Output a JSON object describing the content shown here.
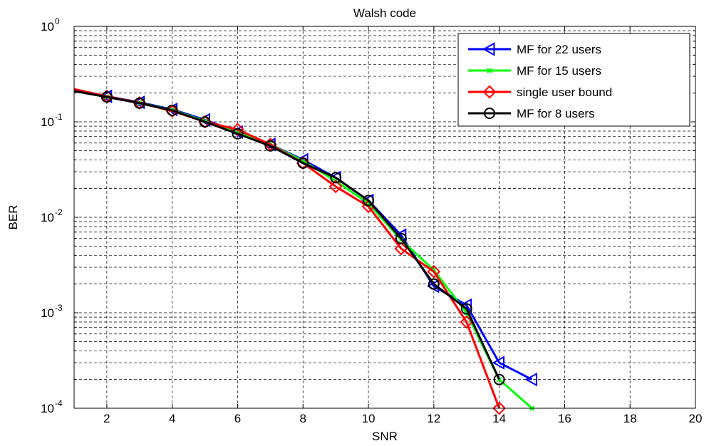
{
  "chart_data": {
    "type": "line",
    "title": "Walsh code",
    "xlabel": "SNR",
    "ylabel": "BER",
    "xlim": [
      1,
      20
    ],
    "ylim": [
      0.0001,
      1
    ],
    "yscale": "log",
    "grid": true,
    "legend_position": "top-right",
    "x_ticks": [
      2,
      4,
      6,
      8,
      10,
      12,
      14,
      16,
      18,
      20
    ],
    "y_ticks": [
      {
        "value": 1,
        "base": "10",
        "exp": "0"
      },
      {
        "value": 0.1,
        "base": "10",
        "exp": "-1"
      },
      {
        "value": 0.01,
        "base": "10",
        "exp": "-2"
      },
      {
        "value": 0.001,
        "base": "10",
        "exp": "-3"
      },
      {
        "value": 0.0001,
        "base": "10",
        "exp": "-4"
      }
    ],
    "series": [
      {
        "name": "MF for 22 users",
        "color": "#0000ff",
        "marker": "triangle-left",
        "x": [
          1,
          2,
          3,
          4,
          5,
          6,
          7,
          8,
          9,
          10,
          11,
          12,
          13,
          14,
          15
        ],
        "y": [
          0.21,
          0.185,
          0.16,
          0.135,
          0.105,
          0.078,
          0.058,
          0.04,
          0.026,
          0.015,
          0.0065,
          0.0019,
          0.0012,
          0.0003,
          0.0002
        ]
      },
      {
        "name": "MF for 15 users",
        "color": "#00ff00",
        "marker": "x",
        "x": [
          1,
          2,
          3,
          4,
          5,
          6,
          7,
          8,
          9,
          10,
          11,
          12,
          13,
          14,
          15
        ],
        "y": [
          0.21,
          0.183,
          0.158,
          0.133,
          0.102,
          0.077,
          0.058,
          0.039,
          0.024,
          0.014,
          0.0058,
          0.0028,
          0.001,
          0.0002,
          0.0001
        ]
      },
      {
        "name": "single user bound",
        "color": "#ff0000",
        "marker": "diamond",
        "x": [
          1,
          2,
          3,
          4,
          5,
          6,
          7,
          8,
          9,
          10,
          11,
          12,
          13,
          14
        ],
        "y": [
          0.22,
          0.185,
          0.158,
          0.13,
          0.1,
          0.083,
          0.058,
          0.037,
          0.021,
          0.013,
          0.0047,
          0.0027,
          0.0008,
          0.0001
        ]
      },
      {
        "name": "MF for 8 users",
        "color": "#000000",
        "marker": "circle",
        "x": [
          1,
          2,
          3,
          4,
          5,
          6,
          7,
          8,
          9,
          10,
          11,
          12,
          13,
          14
        ],
        "y": [
          0.21,
          0.182,
          0.157,
          0.132,
          0.1,
          0.075,
          0.056,
          0.037,
          0.026,
          0.015,
          0.006,
          0.002,
          0.0011,
          0.0002
        ]
      }
    ]
  }
}
